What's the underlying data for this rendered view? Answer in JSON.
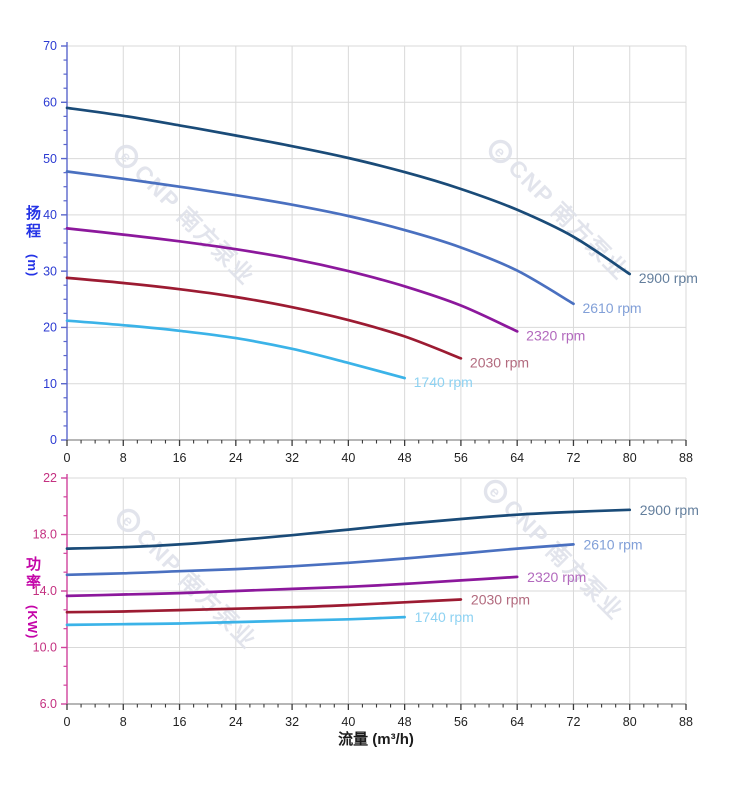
{
  "x_title": "流量 (m³/h)",
  "watermark": {
    "logo": "e",
    "text": "CNP 南方泵业"
  },
  "style": {
    "background": "#ffffff",
    "grid_color": "#d9d9d9",
    "x_label_color": "#1f1f1f",
    "x_tick_color": "#3a3a3a",
    "x_axis_color": "#8a8a8a",
    "watermark_color": "#dfe2ea"
  },
  "chart_data": [
    {
      "type": "line",
      "title": "",
      "xlabel": "流量 (m³/h)",
      "ylabel": "扬程 (m)",
      "ylabel_cjk": "扬程",
      "ylabel_unit": "(m)",
      "y_title_color": "#2433e6",
      "y_axis_color": "#5a66cc",
      "y_tick_label_color": "#2c3bd2",
      "xlim": [
        0,
        88
      ],
      "ylim": [
        0,
        70
      ],
      "x_major": 8,
      "y_major": 10,
      "x_minor_div": 4,
      "y_minor_div": 4,
      "grid": true,
      "legend_position": "curve-end-labels",
      "x_tick_values": [
        0,
        8,
        16,
        24,
        32,
        40,
        48,
        56,
        64,
        72,
        80,
        88
      ],
      "x_tick_labels": [
        "0",
        "8",
        "16",
        "24",
        "32",
        "40",
        "48",
        "56",
        "64",
        "72",
        "80",
        "88"
      ],
      "y_tick_values": [
        0,
        10,
        20,
        30,
        40,
        50,
        60,
        70
      ],
      "y_tick_labels": [
        "0",
        "10",
        "20",
        "30",
        "40",
        "50",
        "60",
        "70"
      ],
      "series": [
        {
          "name": "2900 rpm",
          "color": "#1a4b78",
          "label_color": "#647f9d",
          "x": [
            0,
            8,
            16,
            24,
            32,
            40,
            48,
            56,
            64,
            72,
            80
          ],
          "y": [
            59,
            57.6,
            55.9,
            54.1,
            52.2,
            50.1,
            47.6,
            44.6,
            40.9,
            36.1,
            29.5
          ]
        },
        {
          "name": "2610 rpm",
          "color": "#4a70c0",
          "label_color": "#82a0d8",
          "x": [
            0,
            8,
            16,
            24,
            32,
            40,
            48,
            56,
            64,
            72
          ],
          "y": [
            47.7,
            46.4,
            45.0,
            43.5,
            41.8,
            39.8,
            37.3,
            34.2,
            30.1,
            24.2
          ]
        },
        {
          "name": "2320 rpm",
          "color": "#8c189c",
          "label_color": "#b269bd",
          "x": [
            0,
            8,
            16,
            24,
            32,
            40,
            48,
            56,
            64
          ],
          "y": [
            37.6,
            36.5,
            35.3,
            33.9,
            32.2,
            30.0,
            27.3,
            23.9,
            19.3
          ]
        },
        {
          "name": "2030 rpm",
          "color": "#9c1b32",
          "label_color": "#b26a7e",
          "x": [
            0,
            8,
            16,
            24,
            32,
            40,
            48,
            56
          ],
          "y": [
            28.8,
            27.9,
            26.8,
            25.4,
            23.6,
            21.3,
            18.4,
            14.5
          ]
        },
        {
          "name": "1740 rpm",
          "color": "#3bb3e8",
          "label_color": "#8ed2f2",
          "x": [
            0,
            8,
            16,
            24,
            32,
            40,
            48
          ],
          "y": [
            21.2,
            20.4,
            19.4,
            18.1,
            16.2,
            13.7,
            11.0
          ]
        }
      ]
    },
    {
      "type": "line",
      "title": "",
      "xlabel": "流量 (m³/h)",
      "ylabel": "功率 (KW)",
      "ylabel_cjk": "功率",
      "ylabel_unit": "(KW)",
      "y_title_color": "#c405a8",
      "y_axis_color": "#d0439c",
      "y_tick_label_color": "#c43181",
      "xlim": [
        0,
        88
      ],
      "ylim": [
        6,
        22
      ],
      "x_major": 8,
      "y_major": 4,
      "x_minor_div": 4,
      "y_minor_div": 3,
      "grid": true,
      "legend_position": "curve-end-labels",
      "x_tick_values": [
        0,
        8,
        16,
        24,
        32,
        40,
        48,
        56,
        64,
        72,
        80,
        88
      ],
      "x_tick_labels": [
        "0",
        "8",
        "16",
        "24",
        "32",
        "40",
        "48",
        "56",
        "64",
        "72",
        "80",
        "88"
      ],
      "y_tick_values": [
        6,
        10,
        14,
        18,
        22
      ],
      "y_tick_labels": [
        "6.0",
        "10.0",
        "14.0",
        "18.0",
        "22"
      ],
      "series": [
        {
          "name": "2900 rpm",
          "color": "#1a4b78",
          "label_color": "#647f9d",
          "x": [
            0,
            8,
            16,
            24,
            32,
            40,
            48,
            56,
            64,
            72,
            80
          ],
          "y": [
            17.0,
            17.1,
            17.3,
            17.6,
            17.95,
            18.35,
            18.75,
            19.1,
            19.4,
            19.6,
            19.75
          ]
        },
        {
          "name": "2610 rpm",
          "color": "#4a70c0",
          "label_color": "#82a0d8",
          "x": [
            0,
            8,
            16,
            24,
            32,
            40,
            48,
            56,
            64,
            72
          ],
          "y": [
            15.15,
            15.25,
            15.4,
            15.55,
            15.75,
            16.0,
            16.3,
            16.65,
            17.0,
            17.3
          ]
        },
        {
          "name": "2320 rpm",
          "color": "#8c189c",
          "label_color": "#b269bd",
          "x": [
            0,
            8,
            16,
            24,
            32,
            40,
            48,
            56,
            64
          ],
          "y": [
            13.65,
            13.75,
            13.85,
            14.0,
            14.15,
            14.3,
            14.5,
            14.75,
            15.0
          ]
        },
        {
          "name": "2030 rpm",
          "color": "#9c1b32",
          "label_color": "#b26a7e",
          "x": [
            0,
            8,
            16,
            24,
            32,
            40,
            48,
            56
          ],
          "y": [
            12.5,
            12.55,
            12.65,
            12.75,
            12.85,
            13.0,
            13.2,
            13.4
          ]
        },
        {
          "name": "1740 rpm",
          "color": "#3bb3e8",
          "label_color": "#8ed2f2",
          "x": [
            0,
            8,
            16,
            24,
            32,
            40,
            48
          ],
          "y": [
            11.6,
            11.65,
            11.7,
            11.8,
            11.9,
            12.0,
            12.15
          ]
        }
      ]
    }
  ]
}
